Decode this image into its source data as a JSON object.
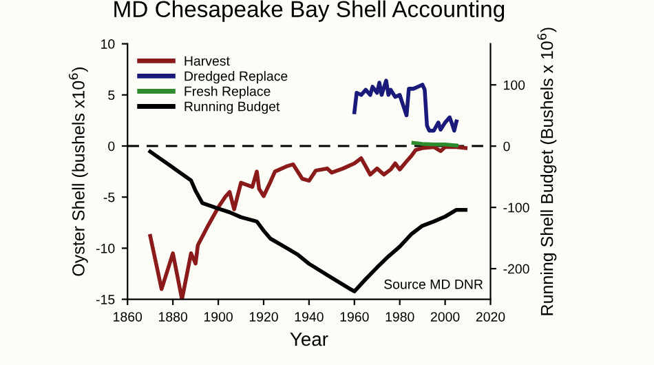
{
  "chart_data": {
    "type": "line",
    "title": "MD Chesapeake Bay Shell Accounting",
    "xlabel": "Year",
    "ylabel": "Oyster Shell (bushels x10$^{6}$)",
    "y2label": "Running Shell Budget (Bushels x 10$^{6}$)",
    "xlim": [
      1860,
      2020
    ],
    "xticks": [
      1860,
      1880,
      1900,
      1920,
      1940,
      1960,
      1980,
      2000,
      2020
    ],
    "ylim": [
      -15,
      10
    ],
    "yticks": [
      -15,
      -10,
      -5,
      0,
      5,
      10
    ],
    "y2lim": [
      -250,
      167
    ],
    "y2ticks": [
      -200,
      -100,
      0,
      100
    ],
    "grid": false,
    "legend": "top left",
    "line_style": "solid",
    "marker": "none",
    "ref_lines": [
      {
        "axis": "y",
        "value": 0,
        "color": "#000000",
        "line_style": "dashed"
      }
    ],
    "annotations": [
      "Source MD DNR"
    ],
    "series": [
      {
        "name": "Harvest",
        "color": "#8b1a1a",
        "x": [
          1870,
          1875,
          1880,
          1884,
          1888,
          1890,
          1891,
          1895,
          1900,
          1903,
          1905,
          1907,
          1910,
          1915,
          1917,
          1918,
          1920,
          1923,
          1925,
          1930,
          1933,
          1937,
          1940,
          1943,
          1948,
          1950,
          1955,
          1960,
          1963,
          1965,
          1967,
          1970,
          1973,
          1976,
          1978,
          1980,
          1983,
          1985,
          1987,
          1990,
          1995,
          1998,
          2000,
          2005,
          2009
        ],
        "values": [
          -8.8,
          -14,
          -10.5,
          -15,
          -10.5,
          -11.5,
          -9.7,
          -8,
          -6,
          -5,
          -4.5,
          -6.2,
          -3.6,
          -4,
          -2.5,
          -4.2,
          -4.9,
          -3.5,
          -2.5,
          -2,
          -1.8,
          -3.2,
          -3.4,
          -2.4,
          -2.2,
          -2.6,
          -2.2,
          -1.7,
          -1.2,
          -2.0,
          -2.8,
          -2.2,
          -2.8,
          -2.3,
          -1.7,
          -2.3,
          -1.5,
          -1.0,
          -0.4,
          -0.2,
          -0.1,
          -0.5,
          -0.1,
          -0.1,
          -0.2
        ]
      },
      {
        "name": "Dredged Replace",
        "color": "#1a1a7a",
        "x": [
          1960,
          1961,
          1963,
          1965,
          1967,
          1968,
          1970,
          1971,
          1972,
          1974,
          1975,
          1976,
          1978,
          1980,
          1981,
          1983,
          1984,
          1986,
          1988,
          1990,
          1991,
          1992,
          1993,
          1995,
          1997,
          1998,
          2000,
          2002,
          2003,
          2004,
          2005
        ],
        "values": [
          3.3,
          5.2,
          5.0,
          5.5,
          5.0,
          5.8,
          5.2,
          6.2,
          5.0,
          6.4,
          5.0,
          5.5,
          4.8,
          5.0,
          4.3,
          3.0,
          5.6,
          5.6,
          5.8,
          6.0,
          5.5,
          2.0,
          1.5,
          1.5,
          2.3,
          1.6,
          2.3,
          2.8,
          2.2,
          1.5,
          2.4
        ]
      },
      {
        "name": "Fresh Replace",
        "color": "#2e8b2e",
        "x": [
          1986,
          1990,
          1995,
          2000,
          2005
        ],
        "values": [
          0.3,
          0.2,
          0.15,
          0.15,
          0.05
        ]
      },
      {
        "name": "Running Budget",
        "color": "#000000",
        "axis": "y2",
        "x": [
          1870,
          1880,
          1888,
          1890,
          1893,
          1900,
          1905,
          1910,
          1917,
          1920,
          1923,
          1930,
          1935,
          1940,
          1950,
          1958,
          1960,
          1965,
          1970,
          1975,
          1980,
          1985,
          1990,
          1995,
          2000,
          2005,
          2009
        ],
        "values": [
          -9,
          -35,
          -56,
          -73,
          -93,
          -102,
          -108,
          -116,
          -123,
          -138,
          -151,
          -166,
          -177,
          -192,
          -215,
          -233,
          -237,
          -217,
          -198,
          -180,
          -164,
          -144,
          -130,
          -123,
          -115,
          -104,
          -104
        ]
      }
    ]
  }
}
